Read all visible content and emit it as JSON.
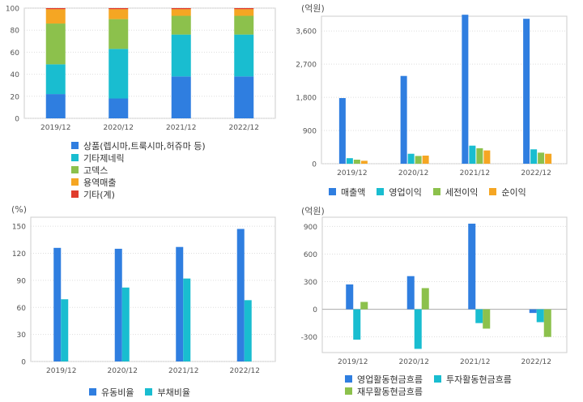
{
  "colors": {
    "blue": "#2f7ee0",
    "cyan": "#19bdd0",
    "green": "#8cc14c",
    "orange": "#f5a623",
    "red": "#e03c2c",
    "grid": "#dddddd",
    "axis": "#999999"
  },
  "chart_data": [
    {
      "id": "revenue-mix",
      "type": "bar",
      "stacked": true,
      "unit": "",
      "categories": [
        "2019/12",
        "2020/12",
        "2021/12",
        "2022/12"
      ],
      "ylim": [
        0,
        100
      ],
      "yticks": [
        0,
        20,
        40,
        60,
        80,
        100
      ],
      "grid": true,
      "legend_position": "bottom",
      "series": [
        {
          "name": "상품(렙시마,트룩시마,허쥬마 등)",
          "color": "#2f7ee0",
          "values": [
            22,
            18,
            38,
            38
          ]
        },
        {
          "name": "기타제네릭",
          "color": "#19bdd0",
          "values": [
            27,
            45,
            38,
            38
          ]
        },
        {
          "name": "고덱스",
          "color": "#8cc14c",
          "values": [
            37,
            27,
            17,
            17
          ]
        },
        {
          "name": "용역매출",
          "color": "#f5a623",
          "values": [
            13,
            9,
            6,
            6
          ]
        },
        {
          "name": "기타(계)",
          "color": "#e03c2c",
          "values": [
            1,
            1,
            1,
            1
          ]
        }
      ]
    },
    {
      "id": "income",
      "type": "bar",
      "unit": "(억원)",
      "categories": [
        "2019/12",
        "2020/12",
        "2021/12",
        "2022/12"
      ],
      "ylim": [
        0,
        4000
      ],
      "yticks": [
        0,
        900,
        1800,
        2700,
        3600
      ],
      "ytick_labels": [
        "0",
        "900",
        "1,800",
        "2,700",
        "3,600"
      ],
      "grid": true,
      "legend_position": "bottom",
      "series": [
        {
          "name": "매출액",
          "color": "#2f7ee0",
          "values": [
            1780,
            2380,
            4040,
            3930
          ]
        },
        {
          "name": "영업이익",
          "color": "#19bdd0",
          "values": [
            150,
            270,
            490,
            390
          ]
        },
        {
          "name": "세전이익",
          "color": "#8cc14c",
          "values": [
            110,
            210,
            420,
            300
          ]
        },
        {
          "name": "순이익",
          "color": "#f5a623",
          "values": [
            80,
            220,
            360,
            270
          ]
        }
      ]
    },
    {
      "id": "ratios",
      "type": "bar",
      "unit": "(%)",
      "categories": [
        "2019/12",
        "2020/12",
        "2021/12",
        "2022/12"
      ],
      "ylim": [
        0,
        160
      ],
      "yticks": [
        0,
        30,
        60,
        90,
        120,
        150
      ],
      "ytick_labels": [
        "0",
        "30",
        "60",
        "90",
        "120",
        "150"
      ],
      "grid": true,
      "legend_position": "bottom",
      "series": [
        {
          "name": "유동비율",
          "color": "#2f7ee0",
          "values": [
            126,
            125,
            127,
            147
          ]
        },
        {
          "name": "부채비율",
          "color": "#19bdd0",
          "values": [
            69,
            82,
            92,
            68
          ]
        }
      ]
    },
    {
      "id": "cashflow",
      "type": "bar",
      "unit": "(억원)",
      "categories": [
        "2019/12",
        "2020/12",
        "2021/12",
        "2022/12"
      ],
      "ylim": [
        -470,
        1000
      ],
      "yticks": [
        -300,
        0,
        300,
        600,
        900
      ],
      "ytick_labels": [
        "-300",
        "0",
        "300",
        "600",
        "900"
      ],
      "grid": true,
      "legend_position": "bottom",
      "series": [
        {
          "name": "영업활동현금흐름",
          "color": "#2f7ee0",
          "values": [
            270,
            360,
            930,
            -40
          ]
        },
        {
          "name": "투자활동현금흐름",
          "color": "#19bdd0",
          "values": [
            -330,
            -430,
            -150,
            -140
          ]
        },
        {
          "name": "재무활동현금흐름",
          "color": "#8cc14c",
          "values": [
            80,
            230,
            -210,
            -300
          ]
        }
      ]
    }
  ]
}
